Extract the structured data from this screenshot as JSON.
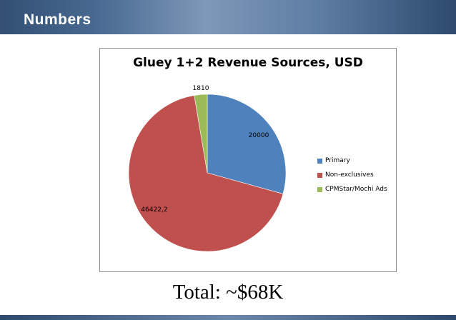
{
  "header": {
    "title": "Numbers"
  },
  "chart_data": {
    "type": "pie",
    "title": "Gluey 1+2 Revenue Sources, USD",
    "categories": [
      "Primary",
      "Non-exclusives",
      "CPMStar/Mochi Ads"
    ],
    "values": [
      20000,
      46422.2,
      1810
    ],
    "data_labels": [
      "20000",
      "46422,2",
      "1810"
    ],
    "colors": [
      "#4f81bd",
      "#c0504d",
      "#9bbb59"
    ],
    "legend_position": "right"
  },
  "footer": {
    "total": "Total: ~$68K"
  }
}
